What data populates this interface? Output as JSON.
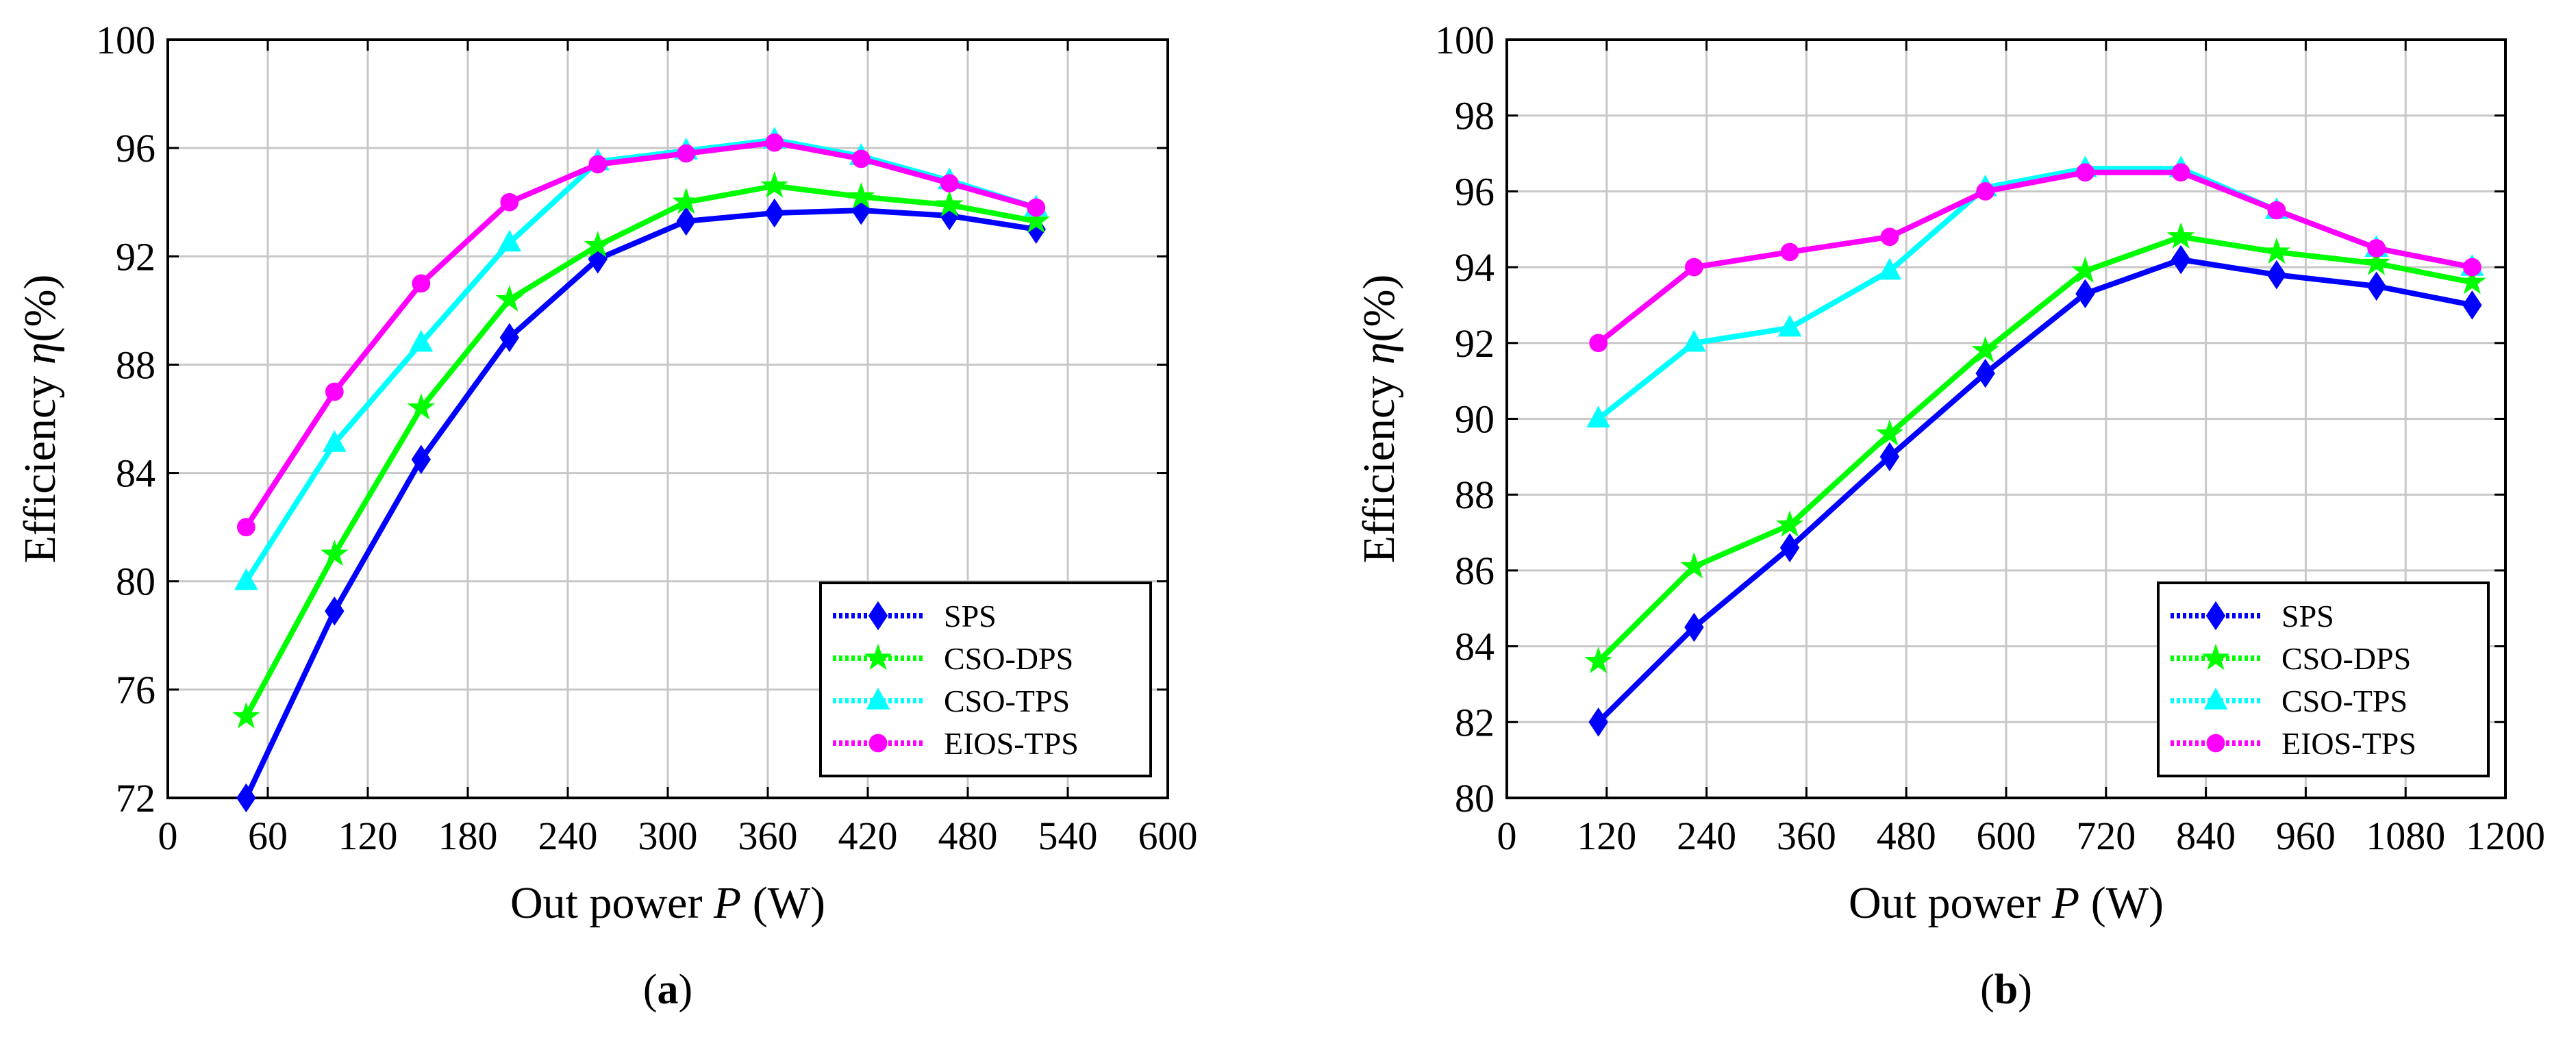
{
  "chart_data": [
    {
      "type": "line",
      "caption_letter": "a",
      "xlabel_prefix": "Out power",
      "xlabel_var": "P",
      "xlabel_suffix": "(W)",
      "ylabel_prefix": "Efficiency",
      "ylabel_var": "η",
      "ylabel_suffix": "(%)",
      "xlim": [
        0,
        600
      ],
      "ylim": [
        72,
        100
      ],
      "xticks": [
        0,
        60,
        120,
        180,
        240,
        300,
        360,
        420,
        480,
        540,
        600
      ],
      "yticks": [
        72,
        76,
        80,
        84,
        88,
        92,
        96,
        100
      ],
      "grid": true,
      "legend_position": "bottom-right",
      "x": [
        47,
        100,
        152,
        205,
        258,
        311,
        364,
        416,
        469,
        521
      ],
      "series": [
        {
          "name": "SPS",
          "color": "#0000ff",
          "marker": "diamond",
          "values": [
            72.0,
            78.9,
            84.5,
            89.0,
            91.9,
            93.3,
            93.6,
            93.7,
            93.5,
            93.0
          ]
        },
        {
          "name": "CSO-DPS",
          "color": "#00ff00",
          "marker": "star",
          "values": [
            75.0,
            81.0,
            86.4,
            90.4,
            92.4,
            94.0,
            94.6,
            94.2,
            93.9,
            93.3
          ]
        },
        {
          "name": "CSO-TPS",
          "color": "#00ffff",
          "marker": "triangle",
          "values": [
            80.0,
            85.1,
            88.8,
            92.5,
            95.5,
            95.9,
            96.3,
            95.7,
            94.8,
            93.8
          ]
        },
        {
          "name": "EIOS-TPS",
          "color": "#ff00ff",
          "marker": "circle",
          "values": [
            82.0,
            87.0,
            91.0,
            94.0,
            95.4,
            95.8,
            96.2,
            95.6,
            94.7,
            93.8
          ]
        }
      ]
    },
    {
      "type": "line",
      "caption_letter": "b",
      "xlabel_prefix": "Out power",
      "xlabel_var": "P",
      "xlabel_suffix": "(W)",
      "ylabel_prefix": "Efficiency",
      "ylabel_var": "η",
      "ylabel_suffix": "(%)",
      "xlim": [
        0,
        1200
      ],
      "ylim": [
        80,
        100
      ],
      "xticks": [
        0,
        120,
        240,
        360,
        480,
        600,
        720,
        840,
        960,
        1080,
        1200
      ],
      "yticks": [
        80,
        82,
        84,
        86,
        88,
        90,
        92,
        94,
        96,
        98,
        100
      ],
      "grid": true,
      "legend_position": "bottom-right",
      "x": [
        110,
        225,
        340,
        460,
        575,
        695,
        810,
        925,
        1045,
        1160
      ],
      "series": [
        {
          "name": "SPS",
          "color": "#0000ff",
          "marker": "diamond",
          "values": [
            82.0,
            84.5,
            86.6,
            89.0,
            91.2,
            93.3,
            94.2,
            93.8,
            93.5,
            93.0
          ]
        },
        {
          "name": "CSO-DPS",
          "color": "#00ff00",
          "marker": "star",
          "values": [
            83.6,
            86.1,
            87.2,
            89.6,
            91.8,
            93.9,
            94.8,
            94.4,
            94.1,
            93.6
          ]
        },
        {
          "name": "CSO-TPS",
          "color": "#00ffff",
          "marker": "triangle",
          "values": [
            90.0,
            92.0,
            92.4,
            93.9,
            96.1,
            96.6,
            96.6,
            95.5,
            94.5,
            94.0
          ]
        },
        {
          "name": "EIOS-TPS",
          "color": "#ff00ff",
          "marker": "circle",
          "values": [
            92.0,
            94.0,
            94.4,
            94.8,
            96.0,
            96.5,
            96.5,
            95.5,
            94.5,
            94.0
          ]
        }
      ]
    }
  ]
}
